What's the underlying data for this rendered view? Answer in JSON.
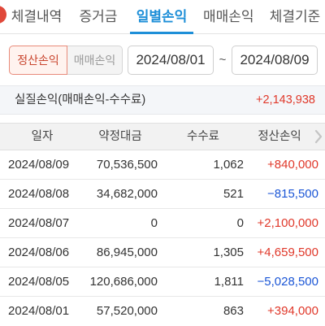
{
  "tabs": [
    "체결내역",
    "증거금",
    "일별손익",
    "매매손익",
    "체결기준"
  ],
  "active_tab": 2,
  "filter": {
    "toggle_on": "정산손익",
    "toggle_off": "매매손익",
    "start_date": "2024/08/01",
    "separator": "~",
    "end_date": "2024/08/09"
  },
  "summary": {
    "label": "실질손익(매매손익-수수료)",
    "value": "+2,143,938"
  },
  "table": {
    "headers": [
      "일자",
      "약정대금",
      "수수료",
      "정산손익"
    ],
    "rows": [
      {
        "date": "2024/08/09",
        "amount": "70,536,500",
        "fee": "1,062",
        "pl": "+840,000",
        "sign": "pos"
      },
      {
        "date": "2024/08/08",
        "amount": "34,682,000",
        "fee": "521",
        "pl": "−815,500",
        "sign": "neg"
      },
      {
        "date": "2024/08/07",
        "amount": "0",
        "fee": "0",
        "pl": "+2,100,000",
        "sign": "pos"
      },
      {
        "date": "2024/08/06",
        "amount": "86,945,000",
        "fee": "1,305",
        "pl": "+4,659,500",
        "sign": "pos"
      },
      {
        "date": "2024/08/05",
        "amount": "120,686,000",
        "fee": "1,811",
        "pl": "−5,028,500",
        "sign": "neg"
      },
      {
        "date": "2024/08/01",
        "amount": "57,520,000",
        "fee": "863",
        "pl": "+394,000",
        "sign": "pos"
      }
    ]
  },
  "colors": {
    "accent": "#1e8fd8",
    "positive": "#e0382a",
    "negative": "#1b56d6",
    "toggle_active": "#c9452e"
  },
  "icons": {
    "scroll_hint": "chevron-right-icon"
  }
}
